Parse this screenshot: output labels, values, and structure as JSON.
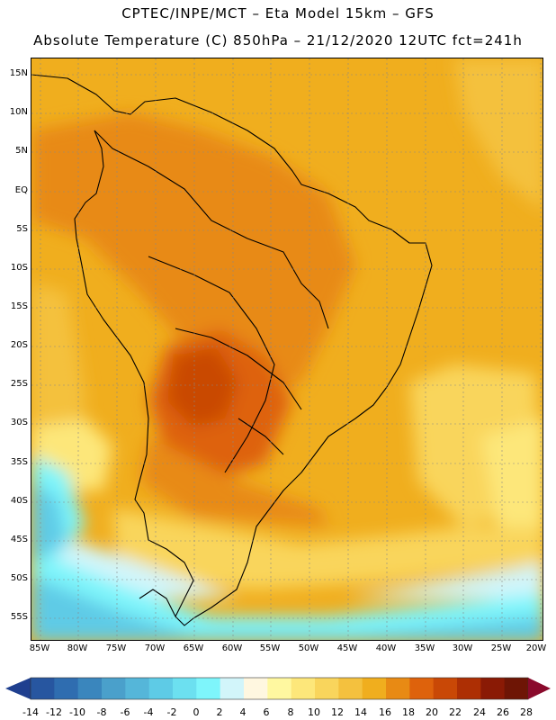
{
  "header": {
    "line1": "CPTEC/INPE/MCT –  Eta Model 15km – GFS",
    "line2": "Absolute Temperature (C) 850hPa – 21/12/2020 12UTC fct=241h"
  },
  "map": {
    "lat_labels": [
      "15N",
      "10N",
      "5N",
      "EQ",
      "5S",
      "10S",
      "15S",
      "20S",
      "25S",
      "30S",
      "35S",
      "40S",
      "45S",
      "50S",
      "55S"
    ],
    "lon_labels": [
      "85W",
      "80W",
      "75W",
      "70W",
      "65W",
      "60W",
      "55W",
      "50W",
      "45W",
      "40W",
      "35W",
      "30W",
      "25W",
      "20W"
    ]
  },
  "colorbar": {
    "labels": [
      "-14",
      "-12",
      "-10",
      "-8",
      "-6",
      "-4",
      "-2",
      "0",
      "2",
      "4",
      "6",
      "8",
      "10",
      "12",
      "14",
      "16",
      "18",
      "20",
      "22",
      "24",
      "26",
      "28"
    ],
    "colors": [
      "#1f3f8f",
      "#2756a0",
      "#2f6db0",
      "#3a86bd",
      "#4aa0cb",
      "#55b6d9",
      "#5ecbe6",
      "#6ce0f0",
      "#7ef5fb",
      "#d2f5fa",
      "#fff7e0",
      "#fff8a0",
      "#fde77a",
      "#f9d55c",
      "#f4c13e",
      "#f0ae1e",
      "#e88a14",
      "#de620c",
      "#c94806",
      "#ad2f04",
      "#8a1a05",
      "#6e1505",
      "#8a0a2c"
    ]
  }
}
